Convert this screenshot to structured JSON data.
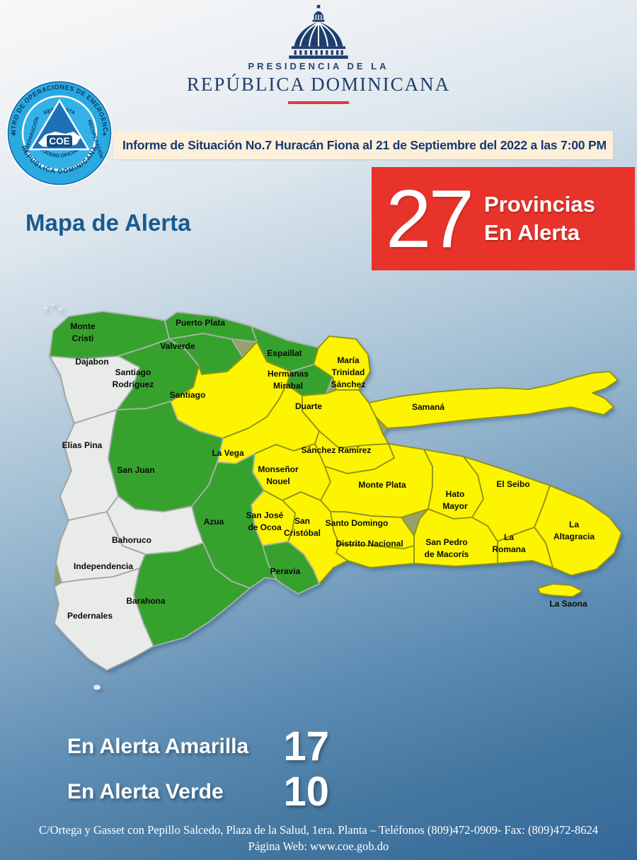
{
  "header": {
    "presidencia_line1": "PRESIDENCIA DE LA",
    "presidencia_line2": "REPÚBLICA DOMINICANA",
    "informe": "Informe de Situación No.7 Huracán Fiona al 21 de Septiembre del 2022 a las 7:00 PM"
  },
  "coe_logo": {
    "ring_top": "CENTRO DE OPERACIONES DE EMERGENCIAS",
    "ring_bottom": "REPÚBLICA DOMINICANA",
    "inner_top": "RESPUESTA",
    "inner_left": "PREPARACIÓN",
    "inner_right": "RECUPERACIÓN",
    "inner_bottom": "VOCERO OFICIAL",
    "center": "COE",
    "accent_blue": "#2aa9e1",
    "navy": "#0e3a66"
  },
  "alert_banner": {
    "count": "27",
    "line1": "Provincias",
    "line2": "En Alerta",
    "color": "#e8332b"
  },
  "map": {
    "title": "Mapa de Alerta",
    "colors": {
      "amarilla": "#fcf400",
      "verde": "#36a22d",
      "ninguna": "#e9ebe9"
    },
    "borders": {
      "amarilla": "#8f9019",
      "verde": "#a9b4a9",
      "ninguna": "#9fa4a6"
    },
    "provinces": [
      {
        "id": "monte-cristi",
        "name": "Monte\nCristi",
        "alert": "verde"
      },
      {
        "id": "dajabon",
        "name": "Dajabon",
        "alert": "ninguna"
      },
      {
        "id": "santiago-rodriguez",
        "name": "Santiago\nRodríguez",
        "alert": "verde"
      },
      {
        "id": "valverde",
        "name": "Valverde",
        "alert": "verde"
      },
      {
        "id": "puerto-plata",
        "name": "Puerto Plata",
        "alert": "verde"
      },
      {
        "id": "espaillat",
        "name": "Espaillat",
        "alert": "verde"
      },
      {
        "id": "hermanas-mirabal",
        "name": "Hermanas\nMirabal",
        "alert": "verde"
      },
      {
        "id": "maria-trinidad-sanchez",
        "name": "María\nTrinidad\nSánchez",
        "alert": "amarilla"
      },
      {
        "id": "samana",
        "name": "Samaná",
        "alert": "amarilla"
      },
      {
        "id": "duarte",
        "name": "Duarte",
        "alert": "amarilla"
      },
      {
        "id": "santiago",
        "name": "Santiago",
        "alert": "amarilla"
      },
      {
        "id": "la-vega",
        "name": "La Vega",
        "alert": "amarilla"
      },
      {
        "id": "sanchez-ramirez",
        "name": "Sánchez Ramírez",
        "alert": "amarilla"
      },
      {
        "id": "monsenor-nouel",
        "name": "Monseñor\nNouel",
        "alert": "amarilla"
      },
      {
        "id": "monte-plata",
        "name": "Monte Plata",
        "alert": "amarilla"
      },
      {
        "id": "hato-mayor",
        "name": "Hato\nMayor",
        "alert": "amarilla"
      },
      {
        "id": "el-seibo",
        "name": "El Seibo",
        "alert": "amarilla"
      },
      {
        "id": "la-altagracia",
        "name": "La\nAltagracia",
        "alert": "amarilla"
      },
      {
        "id": "la-romana",
        "name": "La\nRomana",
        "alert": "amarilla"
      },
      {
        "id": "san-pedro-de-macoris",
        "name": "San Pedro\nde Macorís",
        "alert": "amarilla"
      },
      {
        "id": "santo-domingo",
        "name": "Santo Domingo",
        "alert": "amarilla"
      },
      {
        "id": "distrito-nacional",
        "name": "Distrito Nacional",
        "alert": "amarilla"
      },
      {
        "id": "san-cristobal",
        "name": "San\nCristóbal",
        "alert": "amarilla"
      },
      {
        "id": "san-jose-de-ocoa",
        "name": "San José\nde Ocoa",
        "alert": "amarilla"
      },
      {
        "id": "peravia",
        "name": "Peravia",
        "alert": "verde"
      },
      {
        "id": "azua",
        "name": "Azua",
        "alert": "verde"
      },
      {
        "id": "san-juan",
        "name": "San Juan",
        "alert": "verde"
      },
      {
        "id": "elias-pina",
        "name": "Elias Pina",
        "alert": "ninguna"
      },
      {
        "id": "bahoruco",
        "name": "Bahoruco",
        "alert": "ninguna"
      },
      {
        "id": "independencia",
        "name": "Independencia",
        "alert": "ninguna"
      },
      {
        "id": "barahona",
        "name": "Barahona",
        "alert": "verde"
      },
      {
        "id": "pedernales",
        "name": "Pedernales",
        "alert": "ninguna"
      },
      {
        "id": "la-saona",
        "name": "La Saona",
        "alert": "amarilla"
      }
    ]
  },
  "summary": {
    "rows": [
      {
        "label": "En Alerta Amarilla",
        "value": "17"
      },
      {
        "label": "En Alerta Verde",
        "value": "10"
      }
    ]
  },
  "footer": {
    "line1": "C/Ortega y Gasset con Pepillo Salcedo, Plaza de la Salud, 1era. Planta – Teléfonos (809)472-0909- Fax: (809)472-8624",
    "line2": "Página Web: www.coe.gob.do"
  }
}
